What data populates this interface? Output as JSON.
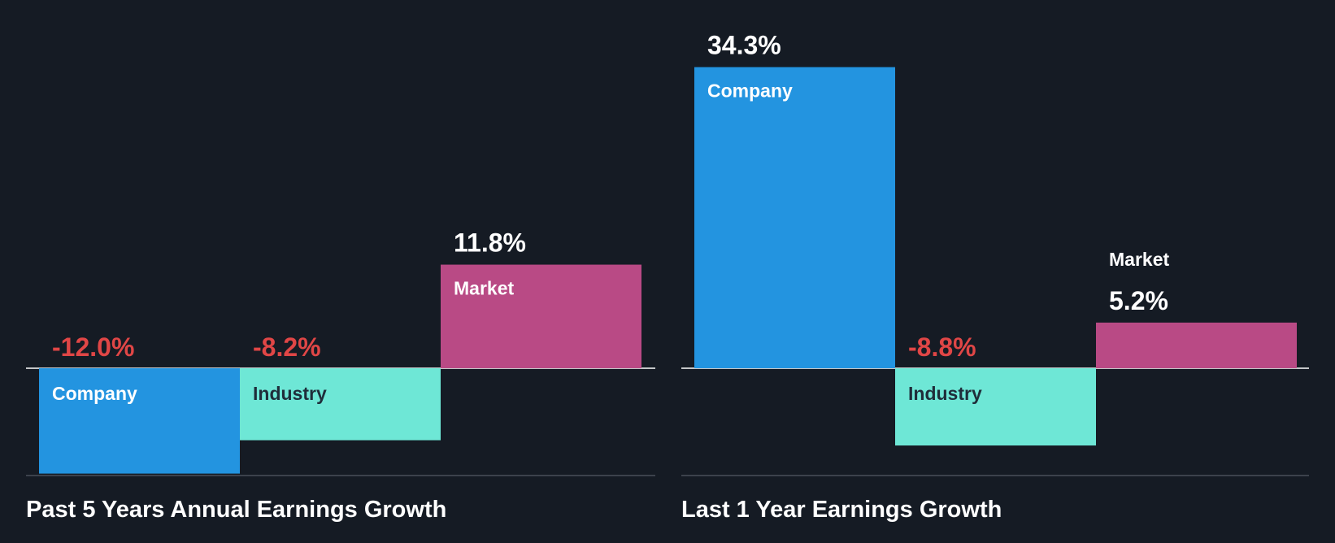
{
  "colors": {
    "background": "#151b24",
    "company": "#2394e0",
    "industry": "#6ee7d6",
    "market": "#b94a85",
    "negative_label": "#e04646",
    "positive_label": "#ffffff",
    "zero_line": "#ffffff",
    "base_line": "#4a5059"
  },
  "chart_data": [
    {
      "type": "bar",
      "title": "Past 5 Years Annual Earnings Growth",
      "categories": [
        "Company",
        "Industry",
        "Market"
      ],
      "values": [
        -12.0,
        -8.2,
        11.8
      ],
      "value_labels": [
        "-12.0%",
        "-8.2%",
        "11.8%"
      ],
      "unit": "%"
    },
    {
      "type": "bar",
      "title": "Last 1 Year Earnings Growth",
      "categories": [
        "Company",
        "Industry",
        "Market"
      ],
      "values": [
        34.3,
        -8.8,
        5.2
      ],
      "value_labels": [
        "34.3%",
        "-8.8%",
        "5.2%"
      ],
      "unit": "%"
    }
  ]
}
